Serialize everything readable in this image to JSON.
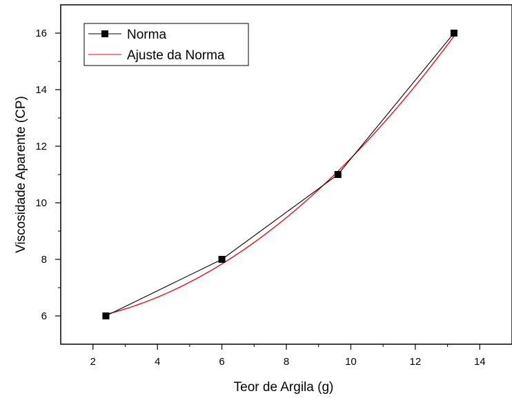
{
  "chart_data": {
    "type": "line",
    "title": "",
    "xlabel": "Teor de Argila (g)",
    "ylabel": "Viscosidade Aparente (CP)",
    "xlim": [
      1,
      15
    ],
    "ylim": [
      5,
      17
    ],
    "x_ticks": [
      2,
      4,
      6,
      8,
      10,
      12,
      14
    ],
    "y_ticks": [
      6,
      8,
      10,
      12,
      14,
      16
    ],
    "x_tick_labels": [
      "2",
      "4",
      "6",
      "8",
      "10",
      "12",
      "14"
    ],
    "y_tick_labels": [
      "6",
      "8",
      "10",
      "12",
      "14",
      "16"
    ],
    "grid": false,
    "legend_position": "top-left",
    "series": [
      {
        "name": "Norma",
        "color": "#000000",
        "marker": "square",
        "x": [
          2.4,
          6.0,
          9.6,
          13.2
        ],
        "y": [
          6,
          8,
          11,
          16
        ]
      },
      {
        "name": "Ajuste da Norma",
        "color": "#e8000b",
        "marker": "none",
        "kind": "fit-curve",
        "x": [
          2.4,
          4.0,
          6.0,
          8.0,
          9.6,
          11.0,
          12.0,
          13.2
        ],
        "y": [
          6.0,
          6.72,
          7.87,
          9.49,
          11.08,
          12.75,
          14.11,
          15.95
        ]
      }
    ]
  }
}
